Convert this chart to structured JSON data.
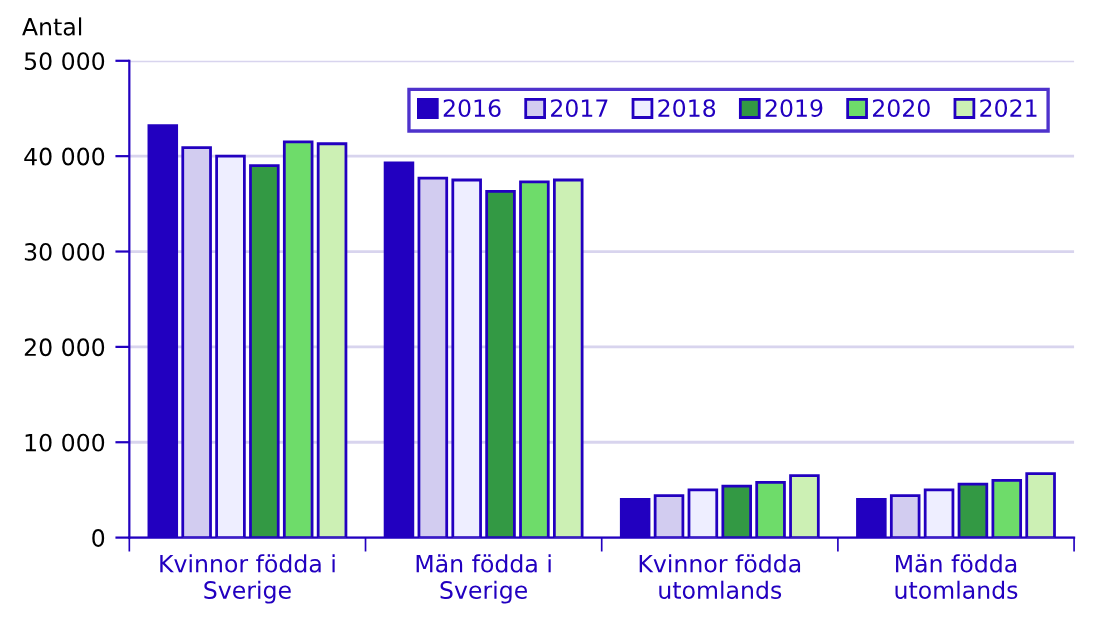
{
  "chart_data": {
    "type": "bar",
    "ylabel": "Antal",
    "categories": [
      "Kvinnor födda i\nSverige",
      "Män födda i\nSverige",
      "Kvinnor födda\nutomlands",
      "Män födda\nutomlands"
    ],
    "series": [
      {
        "name": "2016",
        "color": "#2200c0",
        "values": [
          43200,
          39300,
          4000,
          4000
        ]
      },
      {
        "name": "2017",
        "color": "#d2ccf0",
        "values": [
          40900,
          37700,
          4400,
          4400
        ]
      },
      {
        "name": "2018",
        "color": "#eeeeff",
        "values": [
          40000,
          37500,
          5000,
          5000
        ]
      },
      {
        "name": "2019",
        "color": "#339944",
        "values": [
          39000,
          36300,
          5400,
          5600
        ]
      },
      {
        "name": "2020",
        "color": "#6edc6a",
        "values": [
          41500,
          37300,
          5800,
          6000
        ]
      },
      {
        "name": "2021",
        "color": "#ccf0b4",
        "values": [
          41300,
          37500,
          6500,
          6700
        ]
      }
    ],
    "ylim": [
      0,
      50000
    ],
    "yticks": [
      0,
      {
        "value": 10000,
        "label": "10 000"
      },
      {
        "value": 20000,
        "label": "20 000"
      },
      {
        "value": 30000,
        "label": "30 000"
      },
      {
        "value": 40000,
        "label": "40 000"
      },
      {
        "value": 50000,
        "label": "50 000"
      }
    ],
    "grid": "y",
    "legend": "top right"
  }
}
